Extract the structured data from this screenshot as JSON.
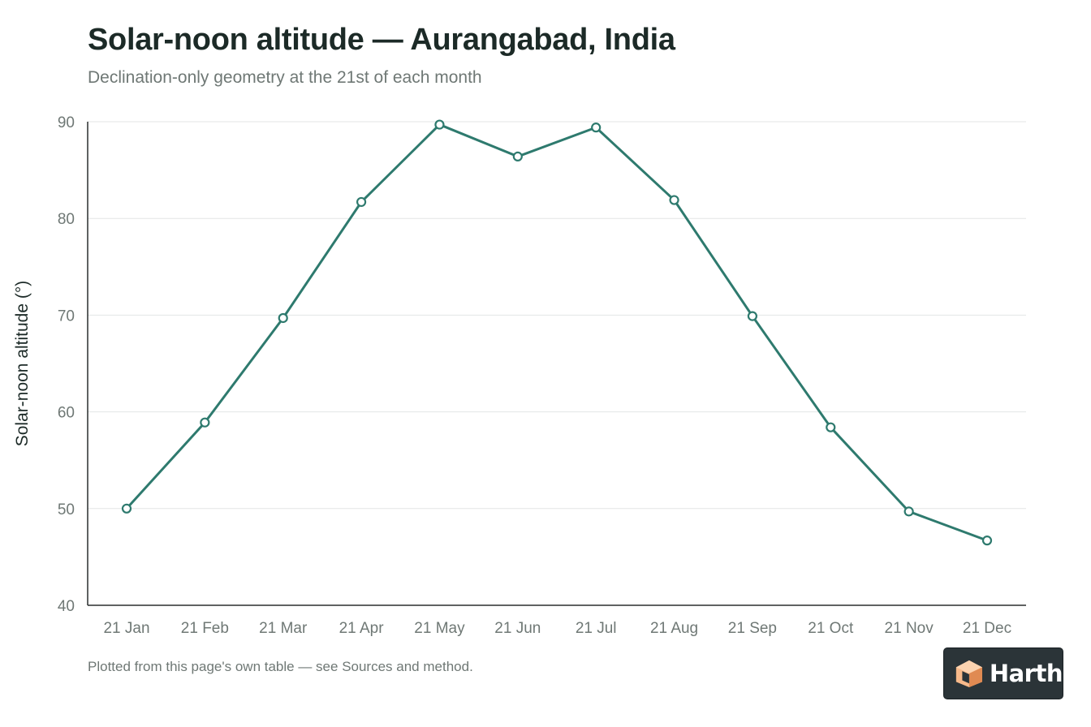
{
  "header": {
    "title": "Solar-noon altitude — Aurangabad, India",
    "subtitle": "Declination-only geometry at the 21st of each month"
  },
  "footer": {
    "note": "Plotted from this page's own table — see Sources and method."
  },
  "logo": {
    "text": "Harth",
    "icon": "cube-icon",
    "colors": {
      "badge": "#2b3438",
      "cube_light": "#f7b98a",
      "cube_dark": "#e08a52"
    }
  },
  "colors": {
    "series": "#2e7a6e",
    "grid": "#e3e6e5",
    "axis": "#2a2f2e",
    "tick_text": "#6f7875",
    "ylabel_text": "#1c2a27"
  },
  "chart_data": {
    "type": "line",
    "title": "Solar-noon altitude — Aurangabad, India",
    "subtitle": "Declination-only geometry at the 21st of each month",
    "xlabel": "",
    "ylabel": "Solar-noon altitude (°)",
    "categories": [
      "21 Jan",
      "21 Feb",
      "21 Mar",
      "21 Apr",
      "21 May",
      "21 Jun",
      "21 Jul",
      "21 Aug",
      "21 Sep",
      "21 Oct",
      "21 Nov",
      "21 Dec"
    ],
    "series": [
      {
        "values": [
          50.0,
          58.9,
          69.7,
          81.7,
          89.7,
          86.4,
          89.4,
          81.9,
          69.9,
          58.4,
          49.7,
          46.7
        ]
      }
    ],
    "ylim": [
      40,
      90
    ],
    "yticks": [
      40,
      50,
      60,
      70,
      80,
      90
    ],
    "grid": true,
    "legend": "none"
  }
}
